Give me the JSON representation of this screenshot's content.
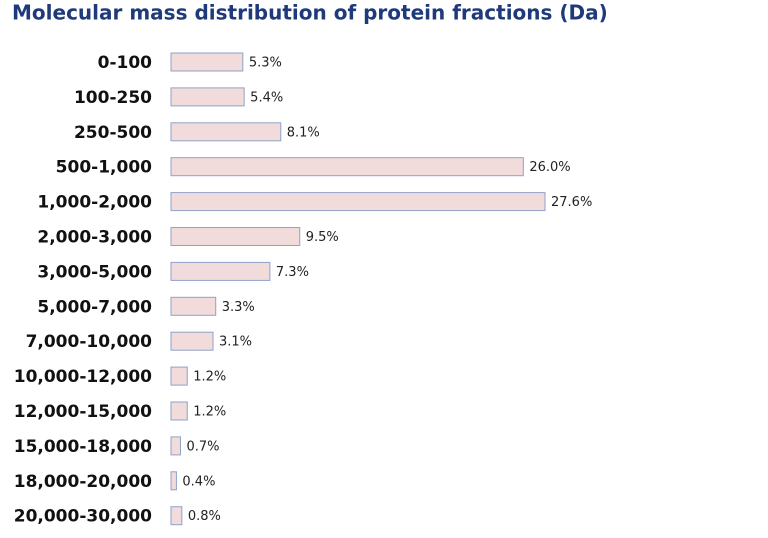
{
  "chart_data": {
    "type": "bar",
    "orientation": "horizontal",
    "title": "Molecular mass distribution of protein fractions (Da)",
    "categories": [
      "0-100",
      "100-250",
      "250-500",
      "500-1,000",
      "1,000-2,000",
      "2,000-3,000",
      "3,000-5,000",
      "5,000-7,000",
      "7,000-10,000",
      "10,000-12,000",
      "12,000-15,000",
      "15,000-18,000",
      "18,000-20,000",
      "20,000-30,000"
    ],
    "values": [
      5.3,
      5.4,
      8.1,
      26.0,
      27.6,
      9.5,
      7.3,
      3.3,
      3.1,
      1.2,
      1.2,
      0.7,
      0.4,
      0.8
    ],
    "value_labels": [
      "5.3%",
      "5.4%",
      "8.1%",
      "26.0%",
      "27.6%",
      "9.5%",
      "7.3%",
      "3.3%",
      "3.1%",
      "1.2%",
      "1.2%",
      "0.7%",
      "0.4%",
      "0.8%"
    ],
    "color": "#f2dcdb",
    "edge_color": "#8fa2c9"
  }
}
